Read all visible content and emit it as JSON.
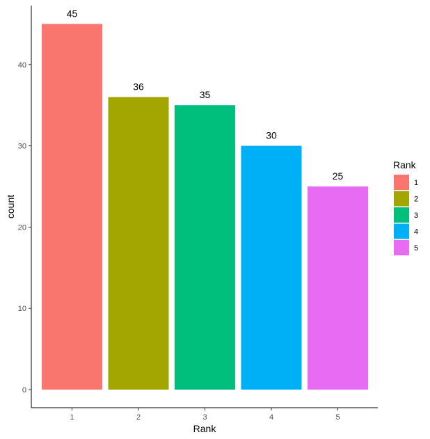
{
  "chart_data": {
    "type": "bar",
    "categories": [
      "1",
      "2",
      "3",
      "4",
      "5"
    ],
    "values": [
      45,
      36,
      35,
      30,
      25
    ],
    "colors": [
      "#F8766D",
      "#A3A500",
      "#00BF7D",
      "#00B0F6",
      "#E76BF3"
    ],
    "xlabel": "Rank",
    "ylabel": "count",
    "ylim": [
      0,
      47
    ],
    "yticks": [
      0,
      10,
      20,
      30,
      40
    ],
    "grid": false,
    "legend": {
      "title": "Rank",
      "placement": "right",
      "entries": [
        "1",
        "2",
        "3",
        "4",
        "5"
      ]
    }
  }
}
